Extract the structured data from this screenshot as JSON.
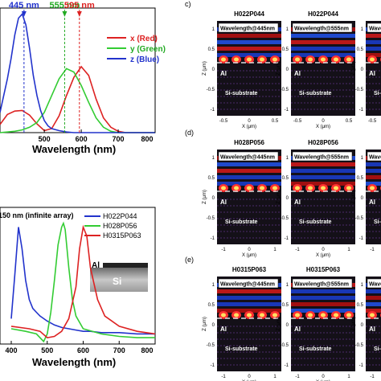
{
  "chart_data": [
    {
      "type": "line",
      "xlabel": "Wavelength (nm)",
      "ylabel": "",
      "xlim": [
        380,
        800
      ],
      "xticks": [
        "500",
        "600",
        "700",
        "800"
      ],
      "markers": [
        {
          "label": "445 nm",
          "x": 445,
          "color": "#2233cc"
        },
        {
          "label": "555 nm",
          "x": 555,
          "color": "#22aa22"
        },
        {
          "label": "595 nm",
          "x": 595,
          "color": "#dd2222"
        }
      ],
      "series": [
        {
          "name": "x (Red)",
          "color": "#dd2222",
          "x": [
            380,
            400,
            420,
            440,
            460,
            480,
            500,
            520,
            540,
            560,
            580,
            600,
            620,
            640,
            660,
            680,
            700,
            720,
            740,
            760,
            780,
            800
          ],
          "y": [
            0.12,
            0.27,
            0.32,
            0.33,
            0.26,
            0.13,
            0.03,
            0.06,
            0.25,
            0.55,
            0.82,
            0.98,
            0.85,
            0.5,
            0.22,
            0.08,
            0.02,
            0,
            0,
            0,
            0,
            0
          ]
        },
        {
          "name": "y (Green)",
          "color": "#33cc33",
          "x": [
            380,
            400,
            420,
            440,
            460,
            480,
            500,
            520,
            540,
            560,
            580,
            600,
            620,
            640,
            660,
            680,
            700,
            720,
            740,
            760,
            780,
            800
          ],
          "y": [
            0,
            0.01,
            0.02,
            0.04,
            0.08,
            0.15,
            0.3,
            0.55,
            0.8,
            0.95,
            0.9,
            0.7,
            0.45,
            0.22,
            0.08,
            0.02,
            0,
            0,
            0,
            0,
            0,
            0
          ]
        },
        {
          "name": "z (Blue)",
          "color": "#2233cc",
          "x": [
            380,
            390,
            400,
            410,
            420,
            430,
            440,
            450,
            460,
            470,
            480,
            490,
            500,
            510,
            520,
            540,
            560,
            580,
            600,
            800
          ],
          "y": [
            0.3,
            0.55,
            0.8,
            1.1,
            1.45,
            1.7,
            1.76,
            1.6,
            1.25,
            0.85,
            0.55,
            0.33,
            0.18,
            0.1,
            0.06,
            0.03,
            0.01,
            0,
            0,
            0
          ]
        }
      ]
    },
    {
      "type": "line",
      "xlabel": "Wavelength (nm)",
      "ylabel": "",
      "xlim": [
        400,
        800
      ],
      "xticks": [
        "400",
        "500",
        "600",
        "700",
        "800"
      ],
      "annotation": "150 nm (infinite array)",
      "inset": {
        "top_label": "Al",
        "bottom_label": "Si"
      },
      "series": [
        {
          "name": "H022P044",
          "color": "#2233cc",
          "x": [
            400,
            410,
            420,
            430,
            440,
            450,
            460,
            470,
            480,
            500,
            520,
            540,
            560,
            580,
            600,
            620,
            650,
            700,
            750,
            800
          ],
          "y": [
            0.2,
            0.55,
            0.92,
            0.75,
            0.5,
            0.35,
            0.28,
            0.25,
            0.22,
            0.18,
            0.15,
            0.13,
            0.12,
            0.11,
            0.1,
            0.1,
            0.09,
            0.09,
            0.08,
            0.08
          ]
        },
        {
          "name": "H028P056",
          "color": "#33cc33",
          "x": [
            400,
            440,
            470,
            490,
            500,
            510,
            520,
            530,
            540,
            545,
            550,
            560,
            570,
            580,
            600,
            650,
            700,
            750,
            800
          ],
          "y": [
            0.12,
            0.1,
            0.08,
            0.02,
            0.08,
            0.25,
            0.5,
            0.78,
            0.92,
            0.95,
            0.9,
            0.6,
            0.35,
            0.22,
            0.12,
            0.08,
            0.06,
            0.05,
            0.05
          ]
        },
        {
          "name": "H0315P063",
          "color": "#dd2222",
          "x": [
            400,
            450,
            480,
            500,
            520,
            540,
            560,
            580,
            590,
            600,
            610,
            620,
            640,
            660,
            700,
            750,
            800
          ],
          "y": [
            0.14,
            0.12,
            0.1,
            0.05,
            0.06,
            0.1,
            0.2,
            0.45,
            0.75,
            0.92,
            0.85,
            0.6,
            0.35,
            0.22,
            0.14,
            0.1,
            0.08
          ]
        }
      ]
    }
  ],
  "simulations": {
    "panels": [
      {
        "letter": "c)",
        "titles": [
          "H022P044",
          "H022P044",
          "H"
        ],
        "wavelength_labels": [
          "Wavelength@445nm",
          "Wavelength@555nm",
          "Wavelength@"
        ],
        "al_label": "Al",
        "substrate_label": "Si-substrate",
        "zlabel": "Z (μm)",
        "xlabel": "X (μm)",
        "zticks": [
          "1",
          "0.5",
          "0",
          "-0.5",
          "-1"
        ],
        "xticks": [
          "-0.5",
          "0",
          "0.5"
        ]
      },
      {
        "letter": "(d)",
        "titles": [
          "H028P056",
          "H028P056",
          "H"
        ],
        "wavelength_labels": [
          "Wavelength@445nm",
          "Wavelength@555nm",
          "Wavelength@"
        ],
        "al_label": "Al",
        "substrate_label": "Si-substrate",
        "zlabel": "Z (μm)",
        "xlabel": "X (μm)",
        "zticks": [
          "1",
          "0.5",
          "0",
          "-0.5",
          "-1"
        ],
        "xticks": [
          "-1",
          "0",
          "1"
        ]
      },
      {
        "letter": "(e)",
        "titles": [
          "H0315P063",
          "H0315P063",
          "H0"
        ],
        "wavelength_labels": [
          "Wavelength@445nm",
          "Wavelength@555nm",
          "Wavelength@"
        ],
        "al_label": "Al",
        "substrate_label": "Si-substrate",
        "zlabel": "Z (μm)",
        "xlabel": "X (μm)",
        "zticks": [
          "1",
          "0.5",
          "0",
          "-0.5",
          "-1"
        ],
        "xticks": [
          "-1",
          "0",
          "1"
        ]
      }
    ]
  }
}
